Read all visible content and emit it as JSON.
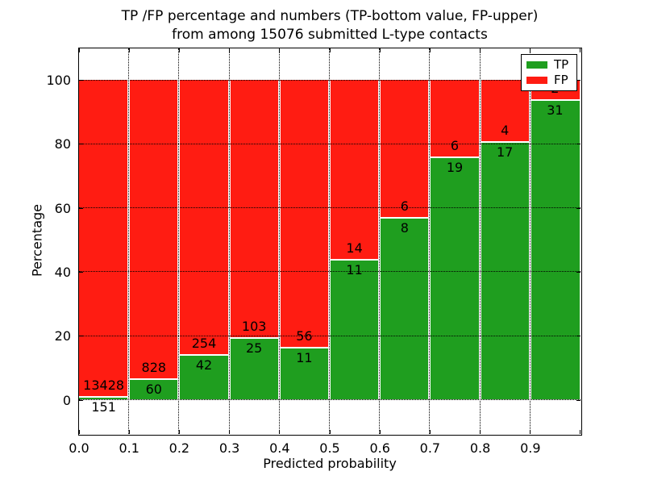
{
  "figure": {
    "title_line1": "TP /FP percentage and numbers (TP-bottom value, FP-upper)",
    "title_line2": "from among 15076 submitted L-type contacts",
    "xlabel": "Predicted probability",
    "ylabel": "Percentage"
  },
  "legend": {
    "labels": [
      "TP",
      "FP"
    ]
  },
  "colors": {
    "tp_green": "#1f9e1f",
    "fp_red": "#ff1c12",
    "background": "#ffffff",
    "grid": "#000000",
    "text": "#000000"
  },
  "chart_data": {
    "type": "bar",
    "stacked": true,
    "title": "TP /FP percentage and numbers (TP-bottom value, FP-upper) from among 15076 submitted L-type contacts",
    "xlabel": "Predicted probability",
    "ylabel": "Percentage",
    "total_submitted_contacts": 15076,
    "bin_width": 0.1,
    "xlim": [
      0.0,
      1.0
    ],
    "ylim": [
      -10.6,
      110
    ],
    "x_tick_labels": [
      "0.0",
      "0.1",
      "0.2",
      "0.3",
      "0.4",
      "0.5",
      "0.6",
      "0.7",
      "0.8",
      "0.9"
    ],
    "y_tick_values": [
      0,
      20,
      40,
      60,
      80,
      100
    ],
    "categories": [
      "0.0-0.1",
      "0.1-0.2",
      "0.2-0.3",
      "0.3-0.4",
      "0.4-0.5",
      "0.5-0.6",
      "0.6-0.7",
      "0.7-0.8",
      "0.8-0.9",
      "0.9-1.0"
    ],
    "series": [
      {
        "name": "TP",
        "color": "#1f9e1f",
        "counts": [
          151,
          60,
          42,
          25,
          11,
          11,
          8,
          19,
          17,
          31
        ],
        "percent": [
          1.11,
          6.76,
          14.19,
          19.53,
          16.42,
          44.0,
          57.14,
          76.0,
          80.95,
          93.94
        ]
      },
      {
        "name": "FP",
        "color": "#ff1c12",
        "counts": [
          13428,
          828,
          254,
          103,
          56,
          14,
          6,
          6,
          4,
          2
        ],
        "percent": [
          98.89,
          93.24,
          85.81,
          80.47,
          83.58,
          56.0,
          42.86,
          24.0,
          19.05,
          6.06
        ]
      }
    ],
    "legend_position": "upper right",
    "grid": {
      "style": "dotted",
      "color": "#000000"
    }
  }
}
